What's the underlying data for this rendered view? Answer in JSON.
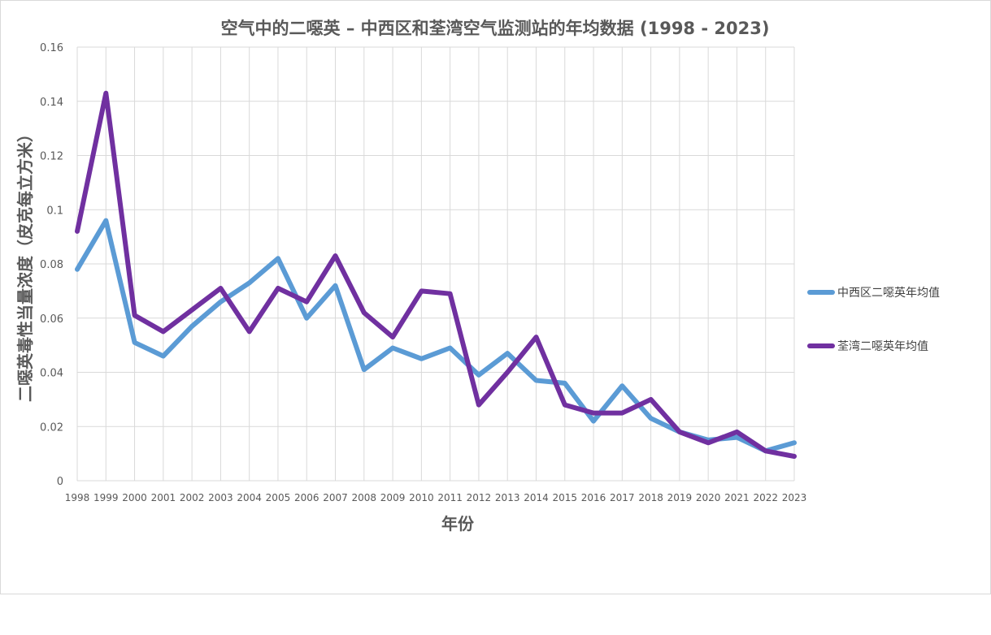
{
  "chart_data": {
    "type": "line",
    "title": "空气中的二噁英 – 中西区和荃湾空气监测站的年均数据 (1998 - 2023)",
    "xlabel": "年份",
    "ylabel": "二噁英毒性当量浓度（皮克每立方米）",
    "ylim": [
      0,
      0.16
    ],
    "yticks": [
      "0",
      "0.02",
      "0.04",
      "0.06",
      "0.08",
      "0.1",
      "0.12",
      "0.14",
      "0.16"
    ],
    "grid": true,
    "legend_position": "right",
    "x": [
      "1998",
      "1999",
      "2000",
      "2001",
      "2002",
      "2003",
      "2004",
      "2005",
      "2006",
      "2007",
      "2008",
      "2009",
      "2010",
      "2011",
      "2012",
      "2013",
      "2014",
      "2015",
      "2016",
      "2017",
      "2018",
      "2019",
      "2020",
      "2021",
      "2022",
      "2023"
    ],
    "series": [
      {
        "name": "中西区二噁英年均值",
        "color": "#5b9bd5",
        "values": [
          0.078,
          0.096,
          0.051,
          0.046,
          0.057,
          0.066,
          0.073,
          0.082,
          0.06,
          0.072,
          0.041,
          0.049,
          0.045,
          0.049,
          0.039,
          0.047,
          0.037,
          0.036,
          0.022,
          0.035,
          0.023,
          0.018,
          0.015,
          0.016,
          0.011,
          0.014
        ]
      },
      {
        "name": "荃湾二噁英年均值",
        "color": "#7030a0",
        "values": [
          0.092,
          0.143,
          0.061,
          0.055,
          0.063,
          0.071,
          0.055,
          0.071,
          0.066,
          0.083,
          0.062,
          0.053,
          0.07,
          0.069,
          0.028,
          0.04,
          0.053,
          0.028,
          0.025,
          0.025,
          0.03,
          0.018,
          0.014,
          0.018,
          0.011,
          0.009
        ]
      }
    ]
  }
}
